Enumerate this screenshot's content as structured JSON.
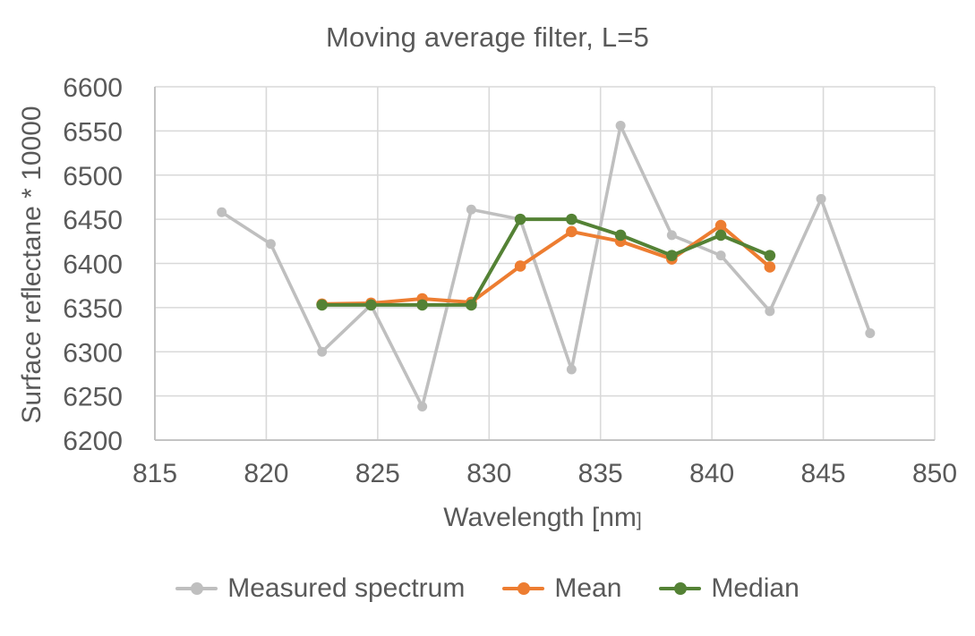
{
  "title": "Moving average filter, L=5",
  "axes": {
    "xlabel_main": "Wavelength [nm",
    "xlabel_bracket": "]",
    "ylabel": "Surface reflectane * 10000"
  },
  "colors": {
    "text": "#595959",
    "gridline": "#d9d9d9",
    "axis_line": "#bfbfbf",
    "background": "#ffffff",
    "measured": "#bfbfbf",
    "mean": "#ed7d31",
    "median": "#548235"
  },
  "chart_data": {
    "type": "line",
    "title": "Moving average filter, L=5",
    "xlabel": "Wavelength [nm]",
    "ylabel": "Surface reflectane * 10000",
    "xlim": [
      815,
      850
    ],
    "ylim": [
      6200,
      6600
    ],
    "x_ticks": [
      815,
      820,
      825,
      830,
      835,
      840,
      845,
      850
    ],
    "y_ticks": [
      6200,
      6250,
      6300,
      6350,
      6400,
      6450,
      6500,
      6550,
      6600
    ],
    "grid": true,
    "legend_position": "bottom",
    "series": [
      {
        "name": "Measured spectrum",
        "color": "#bfbfbf",
        "line_width": 3.6,
        "marker_radius": 5.5,
        "x": [
          818.0,
          820.2,
          822.5,
          824.7,
          827.0,
          829.2,
          831.4,
          833.7,
          835.9,
          838.2,
          840.4,
          842.6,
          844.9,
          847.1
        ],
        "y": [
          6458,
          6422,
          6300,
          6353,
          6238,
          6461,
          6450,
          6280,
          6556,
          6432,
          6409,
          6346,
          6473,
          6321
        ]
      },
      {
        "name": "Mean",
        "color": "#ed7d31",
        "line_width": 4,
        "marker_radius": 6.3,
        "x": [
          822.5,
          824.7,
          827.0,
          829.2,
          831.4,
          833.7,
          835.9,
          838.2,
          840.4,
          842.6
        ],
        "y": [
          6354,
          6355,
          6360,
          6356,
          6397,
          6436,
          6425,
          6405,
          6443,
          6396
        ]
      },
      {
        "name": "Median",
        "color": "#548235",
        "line_width": 4,
        "marker_radius": 6.3,
        "x": [
          822.5,
          824.7,
          827.0,
          829.2,
          831.4,
          833.7,
          835.9,
          838.2,
          840.4,
          842.6
        ],
        "y": [
          6353,
          6353,
          6353,
          6353,
          6450,
          6450,
          6432,
          6409,
          6432,
          6409
        ]
      }
    ]
  }
}
